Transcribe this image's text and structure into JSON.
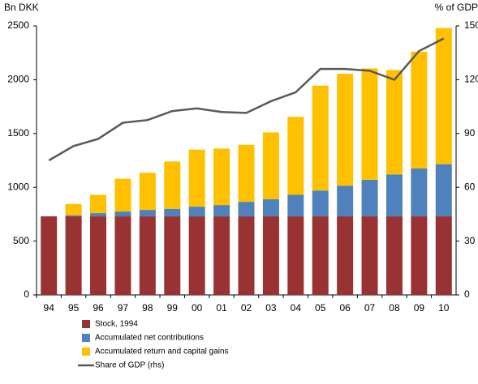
{
  "chart_data": {
    "type": "bar",
    "stacked": true,
    "y_label": "Bn DKK",
    "y2_label": "% of GDP",
    "categories": [
      "94",
      "95",
      "96",
      "97",
      "98",
      "99",
      "00",
      "01",
      "02",
      "03",
      "04",
      "05",
      "06",
      "07",
      "08",
      "09",
      "10"
    ],
    "series": [
      {
        "name": "Stock, 1994",
        "color": "#993333",
        "values": [
          730,
          730,
          730,
          730,
          730,
          730,
          730,
          730,
          730,
          730,
          730,
          730,
          730,
          730,
          730,
          730,
          730
        ]
      },
      {
        "name": "Accumulated net contributions",
        "color": "#4f81bd",
        "values": [
          0,
          10,
          30,
          45,
          60,
          70,
          90,
          105,
          135,
          160,
          200,
          240,
          285,
          340,
          390,
          445,
          485
        ]
      },
      {
        "name": "Accumulated return and capital gains",
        "color": "#ffc000",
        "values": [
          0,
          105,
          170,
          305,
          345,
          440,
          530,
          525,
          530,
          620,
          725,
          975,
          1040,
          1035,
          970,
          1085,
          1265
        ]
      },
      {
        "name": "Share of GDP (rhs)",
        "type": "line",
        "axis": "y2",
        "color": "#595959",
        "values": [
          75,
          83,
          87,
          96,
          97.5,
          102.5,
          104,
          102,
          101.5,
          108,
          113,
          126,
          126,
          125,
          120,
          136,
          143
        ]
      }
    ],
    "ylim": [
      0,
      2500
    ],
    "yticks": [
      0,
      500,
      1000,
      1500,
      2000,
      2500
    ],
    "y2lim": [
      0,
      150
    ],
    "y2ticks": [
      0,
      30,
      60,
      90,
      120,
      150
    ]
  }
}
